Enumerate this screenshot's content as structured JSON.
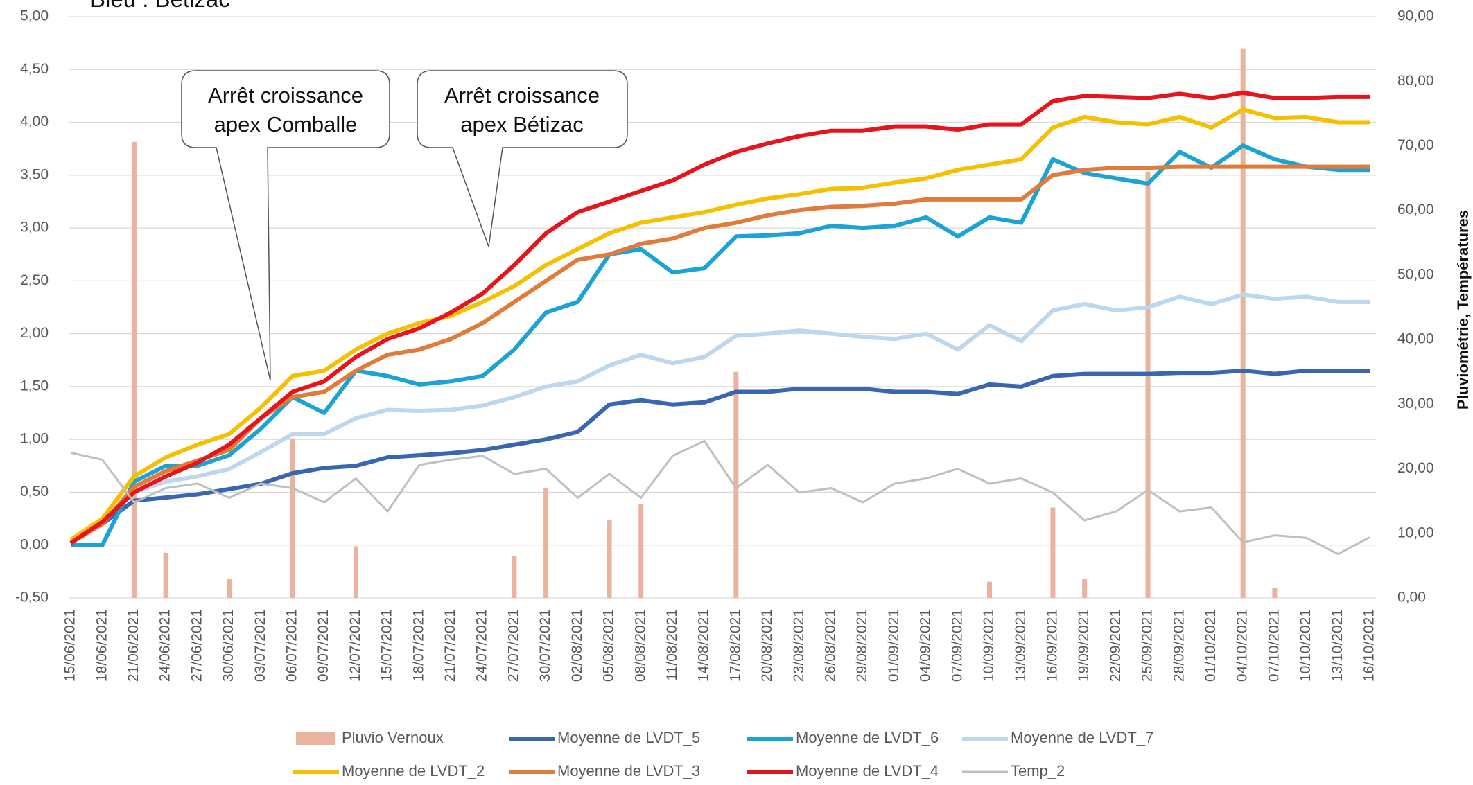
{
  "chart_data": {
    "type": "line",
    "title": "Bleu : Bétizac",
    "y2label": "Pluviométrie, Températures",
    "annotations": [
      {
        "lines": [
          "Arrêt croissance",
          "apex Comballe"
        ]
      },
      {
        "lines": [
          "Arrêt croissance",
          "apex Bétizac"
        ]
      }
    ],
    "categories": [
      "15/06/2021",
      "18/06/2021",
      "21/06/2021",
      "24/06/2021",
      "27/06/2021",
      "30/06/2021",
      "03/07/2021",
      "06/07/2021",
      "09/07/2021",
      "12/07/2021",
      "15/07/2021",
      "18/07/2021",
      "21/07/2021",
      "24/07/2021",
      "27/07/2021",
      "30/07/2021",
      "02/08/2021",
      "05/08/2021",
      "08/08/2021",
      "11/08/2021",
      "14/08/2021",
      "17/08/2021",
      "20/08/2021",
      "23/08/2021",
      "26/08/2021",
      "29/08/2021",
      "01/09/2021",
      "04/09/2021",
      "07/09/2021",
      "10/09/2021",
      "13/09/2021",
      "16/09/2021",
      "19/09/2021",
      "22/09/2021",
      "25/09/2021",
      "28/09/2021",
      "01/10/2021",
      "04/10/2021",
      "07/10/2021",
      "10/10/2021",
      "13/10/2021",
      "16/10/2021"
    ],
    "series": [
      {
        "name": "Pluvio Vernoux",
        "type": "bar",
        "axis": "y2",
        "color": "#e9b39e",
        "values": [
          0,
          0,
          70.6,
          7,
          0,
          3,
          0,
          24.7,
          0,
          8,
          0,
          0,
          0,
          0,
          6.5,
          17,
          0,
          12,
          14.5,
          0,
          0,
          35,
          0,
          0,
          0,
          0,
          0,
          0,
          0,
          2.5,
          0,
          14,
          3,
          0,
          66,
          0,
          0,
          85,
          1.5,
          0,
          0,
          0
        ]
      },
      {
        "name": "Moyenne de LVDT_5",
        "color": "#3a66b0",
        "values": [
          0.05,
          0.2,
          0.42,
          0.45,
          0.48,
          0.53,
          0.58,
          0.68,
          0.73,
          0.75,
          0.83,
          0.85,
          0.87,
          0.9,
          0.95,
          1.0,
          1.07,
          1.33,
          1.37,
          1.33,
          1.35,
          1.45,
          1.45,
          1.48,
          1.48,
          1.48,
          1.45,
          1.45,
          1.43,
          1.52,
          1.5,
          1.6,
          1.62,
          1.62,
          1.62,
          1.63,
          1.63,
          1.65,
          1.62,
          1.65,
          1.65,
          1.65
        ]
      },
      {
        "name": "Moyenne de LVDT_6",
        "color": "#1ca3d6",
        "values": [
          0.0,
          0.0,
          0.6,
          0.75,
          0.75,
          0.85,
          1.1,
          1.4,
          1.25,
          1.65,
          1.6,
          1.52,
          1.55,
          1.6,
          1.85,
          2.2,
          2.3,
          2.75,
          2.8,
          2.58,
          2.62,
          2.92,
          2.93,
          2.95,
          3.02,
          3.0,
          3.02,
          3.1,
          2.92,
          3.1,
          3.05,
          3.65,
          3.52,
          3.47,
          3.42,
          3.72,
          3.57,
          3.78,
          3.65,
          3.58,
          3.55,
          3.55
        ]
      },
      {
        "name": "Moyenne de LVDT_7",
        "color": "#bdd7ee",
        "values": [
          0.05,
          0.22,
          0.5,
          0.6,
          0.65,
          0.72,
          0.88,
          1.05,
          1.05,
          1.2,
          1.28,
          1.27,
          1.28,
          1.32,
          1.4,
          1.5,
          1.55,
          1.7,
          1.8,
          1.72,
          1.78,
          1.98,
          2.0,
          2.03,
          2.0,
          1.97,
          1.95,
          2.0,
          1.85,
          2.08,
          1.93,
          2.22,
          2.28,
          2.22,
          2.25,
          2.35,
          2.28,
          2.37,
          2.33,
          2.35,
          2.3,
          2.3
        ]
      },
      {
        "name": "Moyenne de LVDT_2",
        "color": "#f5c000",
        "values": [
          0.05,
          0.25,
          0.65,
          0.83,
          0.95,
          1.05,
          1.3,
          1.6,
          1.65,
          1.85,
          2.0,
          2.1,
          2.17,
          2.3,
          2.45,
          2.65,
          2.8,
          2.95,
          3.05,
          3.1,
          3.15,
          3.22,
          3.28,
          3.32,
          3.37,
          3.38,
          3.43,
          3.47,
          3.55,
          3.6,
          3.65,
          3.95,
          4.05,
          4.0,
          3.98,
          4.05,
          3.95,
          4.12,
          4.04,
          4.05,
          4.0,
          4.0
        ]
      },
      {
        "name": "Moyenne de LVDT_3",
        "color": "#e07b39",
        "values": [
          0.02,
          0.2,
          0.55,
          0.7,
          0.8,
          0.9,
          1.2,
          1.4,
          1.45,
          1.65,
          1.8,
          1.85,
          1.95,
          2.1,
          2.3,
          2.5,
          2.7,
          2.75,
          2.85,
          2.9,
          3.0,
          3.05,
          3.12,
          3.17,
          3.2,
          3.21,
          3.23,
          3.27,
          3.27,
          3.27,
          3.27,
          3.5,
          3.55,
          3.57,
          3.57,
          3.58,
          3.58,
          3.58,
          3.58,
          3.58,
          3.58,
          3.58
        ]
      },
      {
        "name": "Moyenne de LVDT_4",
        "color": "#e8141c",
        "values": [
          0.02,
          0.22,
          0.5,
          0.65,
          0.78,
          0.95,
          1.2,
          1.45,
          1.55,
          1.78,
          1.95,
          2.05,
          2.2,
          2.38,
          2.65,
          2.95,
          3.15,
          3.25,
          3.35,
          3.45,
          3.6,
          3.72,
          3.8,
          3.87,
          3.92,
          3.92,
          3.96,
          3.96,
          3.93,
          3.98,
          3.98,
          4.2,
          4.25,
          4.24,
          4.23,
          4.27,
          4.23,
          4.28,
          4.23,
          4.23,
          4.24,
          4.24
        ]
      },
      {
        "name": "Temp_2",
        "axis": "y2",
        "color": "#bfbfbf",
        "values": [
          22.5,
          21.4,
          14.8,
          17,
          17.7,
          15.5,
          17.7,
          17,
          14.8,
          18.5,
          13.4,
          20.6,
          21.4,
          22,
          19.2,
          20,
          15.5,
          19.2,
          15.5,
          22,
          24.3,
          17,
          20.6,
          16.3,
          17,
          14.8,
          17.7,
          18.5,
          20,
          17.7,
          18.5,
          16.3,
          12,
          13.4,
          16.7,
          13.4,
          14,
          8.6,
          9.7,
          9.3,
          6.8,
          9.4
        ]
      }
    ],
    "ylim": [
      -0.5,
      5
    ],
    "yticks": [
      {
        "value": -0.5,
        "label": "-0,50"
      },
      {
        "value": 0,
        "label": "0,00"
      },
      {
        "value": 0.5,
        "label": "0,50"
      },
      {
        "value": 1,
        "label": "1,00"
      },
      {
        "value": 1.5,
        "label": "1,50"
      },
      {
        "value": 2,
        "label": "2,00"
      },
      {
        "value": 2.5,
        "label": "2,50"
      },
      {
        "value": 3,
        "label": "3,00"
      },
      {
        "value": 3.5,
        "label": "3,50"
      },
      {
        "value": 4,
        "label": "4,00"
      },
      {
        "value": 4.5,
        "label": "4,50"
      },
      {
        "value": 5,
        "label": "5,00"
      }
    ],
    "y2lim": [
      0,
      90
    ],
    "y2ticks": [
      {
        "value": 0,
        "label": "0,00"
      },
      {
        "value": 10,
        "label": "10,00"
      },
      {
        "value": 20,
        "label": "20,00"
      },
      {
        "value": 30,
        "label": "30,00"
      },
      {
        "value": 40,
        "label": "40,00"
      },
      {
        "value": 50,
        "label": "50,00"
      },
      {
        "value": 60,
        "label": "60,00"
      },
      {
        "value": 70,
        "label": "70,00"
      },
      {
        "value": 80,
        "label": "80,00"
      },
      {
        "value": 90,
        "label": "90,00"
      }
    ],
    "grid": true
  }
}
